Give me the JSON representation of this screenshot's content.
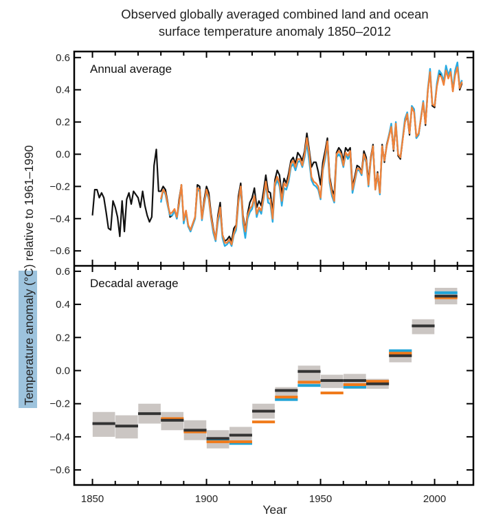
{
  "chart_data": [
    {
      "type": "line",
      "panel": "top",
      "title": "Observed globally averaged combined land and ocean surface temperature anomaly 1850–2012",
      "title_lines": [
        "Observed globally averaged combined land and ocean",
        "surface temperature anomaly 1850–2012"
      ],
      "panel_label": "Annual average",
      "xlabel": "",
      "ylabel": "Temperature anomaly (°C) relative to 1961–1990",
      "ylabel_highlight": "Temperature anomaly",
      "ylabel_rest": " (°C) relative to 1961–1990",
      "xlim": [
        1842,
        2017
      ],
      "ylim": [
        -0.69,
        0.64
      ],
      "yticks": [
        0.6,
        0.4,
        0.2,
        0.0,
        -0.2,
        -0.4,
        -0.6
      ],
      "ytick_labels": [
        "0.6",
        "0.4",
        "0.2",
        "0.0",
        "−0.2",
        "−0.4",
        "−0.6"
      ],
      "grid": false,
      "legend": "none",
      "series": [
        {
          "name": "dataset-black",
          "color": "#111111",
          "x_start": 1850,
          "values": [
            -0.38,
            -0.22,
            -0.22,
            -0.27,
            -0.24,
            -0.27,
            -0.36,
            -0.46,
            -0.47,
            -0.29,
            -0.33,
            -0.39,
            -0.51,
            -0.29,
            -0.48,
            -0.28,
            -0.24,
            -0.31,
            -0.23,
            -0.25,
            -0.27,
            -0.33,
            -0.23,
            -0.32,
            -0.38,
            -0.42,
            -0.39,
            -0.07,
            0.03,
            -0.23,
            -0.23,
            -0.2,
            -0.22,
            -0.3,
            -0.39,
            -0.38,
            -0.35,
            -0.4,
            -0.28,
            -0.19,
            -0.42,
            -0.35,
            -0.45,
            -0.47,
            -0.43,
            -0.39,
            -0.19,
            -0.2,
            -0.4,
            -0.28,
            -0.2,
            -0.24,
            -0.37,
            -0.46,
            -0.53,
            -0.38,
            -0.3,
            -0.5,
            -0.54,
            -0.53,
            -0.51,
            -0.54,
            -0.46,
            -0.44,
            -0.26,
            -0.18,
            -0.38,
            -0.47,
            -0.37,
            -0.3,
            -0.27,
            -0.21,
            -0.33,
            -0.29,
            -0.32,
            -0.23,
            -0.13,
            -0.23,
            -0.24,
            -0.36,
            -0.16,
            -0.1,
            -0.13,
            -0.25,
            -0.15,
            -0.18,
            -0.12,
            -0.04,
            -0.02,
            -0.06,
            0.01,
            -0.01,
            -0.04,
            0.02,
            0.13,
            0.03,
            -0.08,
            -0.05,
            -0.05,
            -0.11,
            -0.19,
            -0.05,
            0.02,
            0.1,
            -0.14,
            -0.22,
            -0.25,
            0.01,
            0.04,
            0.02,
            -0.04,
            0.04,
            0.02,
            0.04,
            -0.2,
            -0.14,
            -0.07,
            -0.08,
            -0.11,
            0.02,
            -0.02,
            -0.17,
            -0.02,
            0.06,
            -0.21,
            -0.11,
            -0.24,
            0.06,
            -0.05,
            0.06,
            0.12,
            0.17,
            0.02,
            0.19,
            -0.01,
            -0.03,
            0.09,
            0.2,
            0.24,
            0.12,
            0.29,
            0.27,
            0.1,
            0.12,
            0.22,
            0.32,
            0.18,
            0.39,
            0.52,
            0.3,
            0.29,
            0.43,
            0.5,
            0.49,
            0.44,
            0.54,
            0.48,
            0.52,
            0.39,
            0.51,
            0.56,
            0.4,
            0.44
          ]
        },
        {
          "name": "dataset-orange",
          "color": "#F0833A",
          "x_start": 1880,
          "values": [
            -0.28,
            -0.22,
            -0.24,
            -0.31,
            -0.37,
            -0.36,
            -0.34,
            -0.39,
            -0.3,
            -0.19,
            -0.41,
            -0.35,
            -0.44,
            -0.47,
            -0.43,
            -0.39,
            -0.21,
            -0.22,
            -0.4,
            -0.3,
            -0.22,
            -0.27,
            -0.39,
            -0.47,
            -0.53,
            -0.4,
            -0.33,
            -0.5,
            -0.55,
            -0.55,
            -0.53,
            -0.56,
            -0.49,
            -0.45,
            -0.29,
            -0.2,
            -0.4,
            -0.48,
            -0.38,
            -0.34,
            -0.32,
            -0.26,
            -0.37,
            -0.33,
            -0.35,
            -0.27,
            -0.17,
            -0.27,
            -0.28,
            -0.4,
            -0.18,
            -0.14,
            -0.18,
            -0.29,
            -0.18,
            -0.2,
            -0.15,
            -0.06,
            -0.04,
            -0.08,
            -0.03,
            -0.03,
            -0.07,
            0.0,
            0.1,
            0.01,
            -0.14,
            -0.17,
            -0.18,
            -0.2,
            -0.27,
            -0.09,
            -0.01,
            0.08,
            -0.16,
            -0.24,
            -0.29,
            0.0,
            0.02,
            0.0,
            -0.07,
            0.01,
            -0.01,
            0.02,
            -0.22,
            -0.16,
            -0.09,
            -0.09,
            -0.12,
            0.0,
            -0.04,
            -0.19,
            -0.03,
            0.05,
            -0.22,
            -0.12,
            -0.24,
            0.05,
            -0.04,
            0.05,
            0.11,
            0.17,
            0.03,
            0.19,
            0.0,
            -0.02,
            0.09,
            0.2,
            0.25,
            0.13,
            0.29,
            0.26,
            0.11,
            0.13,
            0.22,
            0.32,
            0.19,
            0.39,
            0.51,
            0.31,
            0.3,
            0.42,
            0.49,
            0.48,
            0.43,
            0.52,
            0.47,
            0.51,
            0.39,
            0.49,
            0.54,
            0.41,
            0.45
          ]
        },
        {
          "name": "dataset-blue",
          "color": "#29ABE2",
          "x_start": 1880,
          "values": [
            -0.3,
            -0.22,
            -0.25,
            -0.32,
            -0.38,
            -0.38,
            -0.35,
            -0.4,
            -0.31,
            -0.19,
            -0.43,
            -0.36,
            -0.45,
            -0.48,
            -0.44,
            -0.4,
            -0.22,
            -0.23,
            -0.41,
            -0.31,
            -0.23,
            -0.28,
            -0.4,
            -0.49,
            -0.54,
            -0.42,
            -0.35,
            -0.52,
            -0.57,
            -0.56,
            -0.54,
            -0.57,
            -0.5,
            -0.47,
            -0.3,
            -0.21,
            -0.43,
            -0.52,
            -0.4,
            -0.36,
            -0.34,
            -0.27,
            -0.39,
            -0.34,
            -0.37,
            -0.28,
            -0.18,
            -0.3,
            -0.31,
            -0.42,
            -0.2,
            -0.16,
            -0.2,
            -0.32,
            -0.21,
            -0.22,
            -0.17,
            -0.08,
            -0.06,
            -0.1,
            -0.05,
            -0.04,
            -0.08,
            -0.02,
            0.07,
            -0.04,
            -0.16,
            -0.19,
            -0.2,
            -0.22,
            -0.28,
            -0.1,
            -0.03,
            0.06,
            -0.18,
            -0.26,
            -0.3,
            -0.02,
            0.0,
            -0.02,
            -0.08,
            0.0,
            -0.03,
            0.0,
            -0.24,
            -0.17,
            -0.1,
            -0.1,
            -0.13,
            -0.01,
            -0.05,
            -0.2,
            -0.04,
            0.05,
            -0.22,
            -0.13,
            -0.25,
            0.05,
            -0.04,
            0.05,
            0.12,
            0.19,
            0.03,
            0.2,
            0.0,
            -0.02,
            0.1,
            0.22,
            0.26,
            0.13,
            0.3,
            0.28,
            0.1,
            0.12,
            0.23,
            0.33,
            0.2,
            0.4,
            0.53,
            0.31,
            0.3,
            0.44,
            0.52,
            0.5,
            0.45,
            0.55,
            0.49,
            0.53,
            0.4,
            0.52,
            0.57,
            0.42,
            0.46
          ]
        }
      ]
    },
    {
      "type": "bar",
      "panel": "bottom",
      "panel_label": "Decadal average",
      "xlabel": "Year",
      "xlim": [
        1842,
        2017
      ],
      "ylim": [
        -0.69,
        0.64
      ],
      "xticks": [
        1850,
        1900,
        1950,
        2000
      ],
      "xtick_labels": [
        "1850",
        "1900",
        "1950",
        "2000"
      ],
      "xtick_minor_step": 10,
      "yticks": [
        0.6,
        0.4,
        0.2,
        0.0,
        -0.2,
        -0.4,
        -0.6
      ],
      "ytick_labels": [
        "0.6",
        "0.4",
        "0.2",
        "0.0",
        "−0.2",
        "−0.4",
        "−0.6"
      ],
      "grid": false,
      "uncertainty_color": "#CBC6C3",
      "series_colors": {
        "black": "#333333",
        "orange": "#F07A1A",
        "blue": "#1FA3D6"
      },
      "decades": [
        {
          "start": 1850,
          "black": -0.32,
          "orange": null,
          "blue": null,
          "unc": [
            -0.4,
            -0.25
          ]
        },
        {
          "start": 1860,
          "black": -0.335,
          "orange": null,
          "blue": null,
          "unc": [
            -0.41,
            -0.27
          ]
        },
        {
          "start": 1870,
          "black": -0.26,
          "orange": null,
          "blue": null,
          "unc": [
            -0.32,
            -0.2
          ]
        },
        {
          "start": 1880,
          "black": -0.3,
          "orange": -0.29,
          "blue": null,
          "unc": [
            -0.36,
            -0.25
          ]
        },
        {
          "start": 1890,
          "black": -0.36,
          "orange": -0.37,
          "blue": null,
          "unc": [
            -0.42,
            -0.3
          ]
        },
        {
          "start": 1900,
          "black": -0.41,
          "orange": -0.43,
          "blue": -0.42,
          "unc": [
            -0.47,
            -0.36
          ]
        },
        {
          "start": 1910,
          "black": -0.39,
          "orange": -0.43,
          "blue": -0.44,
          "unc": [
            -0.44,
            -0.34
          ]
        },
        {
          "start": 1920,
          "black": -0.245,
          "orange": -0.31,
          "blue": null,
          "unc": [
            -0.29,
            -0.2
          ]
        },
        {
          "start": 1930,
          "black": -0.12,
          "orange": -0.16,
          "blue": -0.175,
          "unc": [
            -0.175,
            -0.1
          ]
        },
        {
          "start": 1940,
          "black": -0.005,
          "orange": -0.07,
          "blue": -0.09,
          "unc": [
            -0.09,
            0.03
          ]
        },
        {
          "start": 1950,
          "black": -0.06,
          "orange": -0.135,
          "blue": null,
          "unc": [
            -0.105,
            -0.025
          ]
        },
        {
          "start": 1960,
          "black": -0.06,
          "orange": -0.085,
          "blue": -0.1,
          "unc": [
            -0.11,
            -0.02
          ]
        },
        {
          "start": 1970,
          "black": -0.08,
          "orange": -0.065,
          "blue": null,
          "unc": [
            -0.11,
            -0.05
          ]
        },
        {
          "start": 1980,
          "black": 0.09,
          "orange": 0.105,
          "blue": 0.12,
          "unc": [
            0.05,
            0.12
          ]
        },
        {
          "start": 1990,
          "black": 0.27,
          "orange": null,
          "blue": null,
          "unc": [
            0.22,
            0.31
          ]
        },
        {
          "start": 2000,
          "black": 0.45,
          "orange": 0.44,
          "blue": 0.47,
          "unc": [
            0.4,
            0.5
          ]
        }
      ]
    }
  ]
}
